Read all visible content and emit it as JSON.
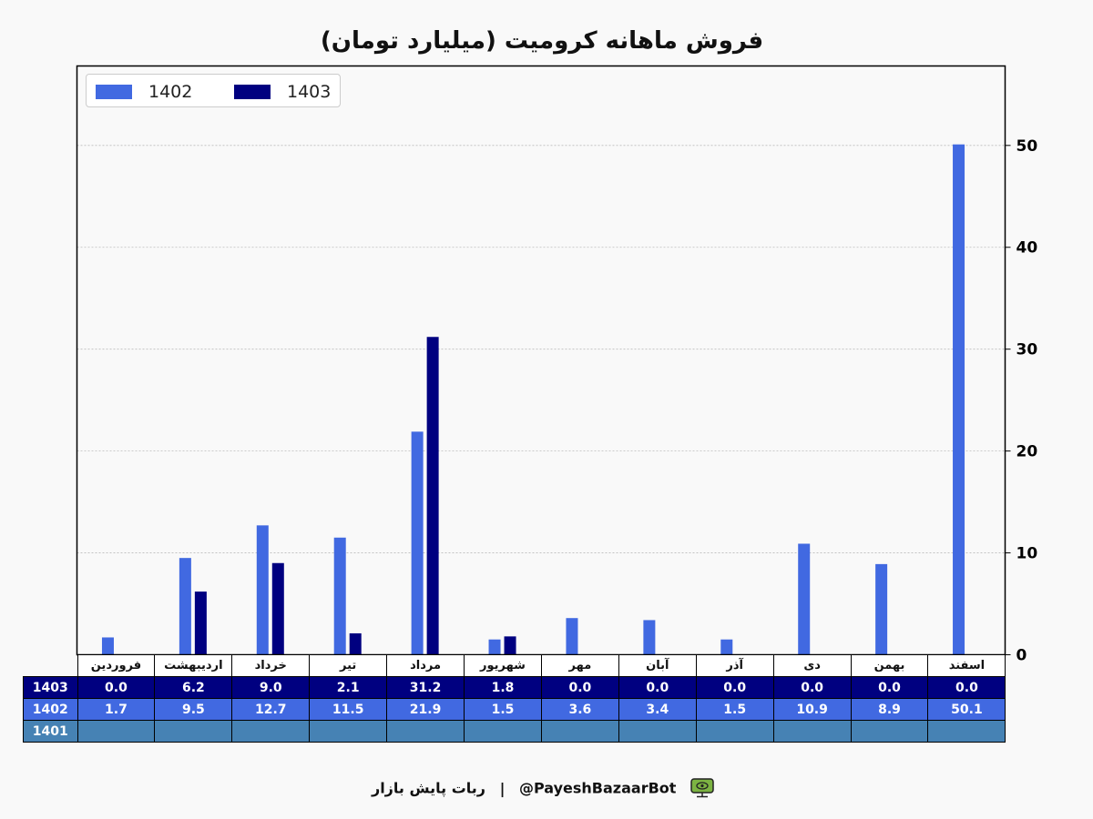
{
  "chart_data": {
    "type": "bar",
    "title": "فروش ماهانه کرومیت (میلیارد تومان)",
    "categories": [
      "فروردین",
      "اردیبهشت",
      "خرداد",
      "تیر",
      "مرداد",
      "شهریور",
      "مهر",
      "آبان",
      "آذر",
      "دی",
      "بهمن",
      "اسفند"
    ],
    "series": [
      {
        "name": "1402",
        "color": "#4169e1",
        "values": [
          1.7,
          9.5,
          12.7,
          11.5,
          21.9,
          1.5,
          3.6,
          3.4,
          1.5,
          10.9,
          8.9,
          50.1
        ],
        "labels": [
          "1.7",
          "9.5",
          "12.7",
          "11.5",
          "21.9",
          "1.5",
          "3.6",
          "3.4",
          "1.5",
          "10.9",
          "8.9",
          "50.1"
        ]
      },
      {
        "name": "1403",
        "color": "#000080",
        "values": [
          0.0,
          6.2,
          9.0,
          2.1,
          31.2,
          1.8,
          0.0,
          0.0,
          0.0,
          0.0,
          0.0,
          0.0
        ],
        "labels": [
          "0.0",
          "6.2",
          "9.0",
          "2.1",
          "31.2",
          "1.8",
          "0.0",
          "0.0",
          "0.0",
          "0.0",
          "0.0",
          "0.0"
        ]
      }
    ],
    "table_rows": [
      {
        "name": "1403",
        "color": "#000080",
        "values": [
          "0.0",
          "6.2",
          "9.0",
          "2.1",
          "31.2",
          "1.8",
          "0.0",
          "0.0",
          "0.0",
          "0.0",
          "0.0",
          "0.0"
        ]
      },
      {
        "name": "1402",
        "color": "#4169e1",
        "values": [
          "1.7",
          "9.5",
          "12.7",
          "11.5",
          "21.9",
          "1.5",
          "3.6",
          "3.4",
          "1.5",
          "10.9",
          "8.9",
          "50.1"
        ]
      },
      {
        "name": "1401",
        "color": "#4682b4",
        "values": [
          "",
          "",
          "",
          "",
          "",
          "",
          "",
          "",
          "",
          "",
          "",
          ""
        ]
      }
    ],
    "ylim": [
      0,
      57.8
    ],
    "yticks": [
      0,
      10,
      20,
      30,
      40,
      50
    ],
    "ytick_labels": [
      "0",
      "10",
      "20",
      "30",
      "40",
      "50"
    ],
    "y_axis_side": "right",
    "grid": true,
    "legend_position": "top-left"
  },
  "footer": {
    "bot_name": "ربات پایش بازار",
    "separator": "|",
    "handle": "@PayeshBazaarBot",
    "icon": "monitor-eye-icon"
  }
}
